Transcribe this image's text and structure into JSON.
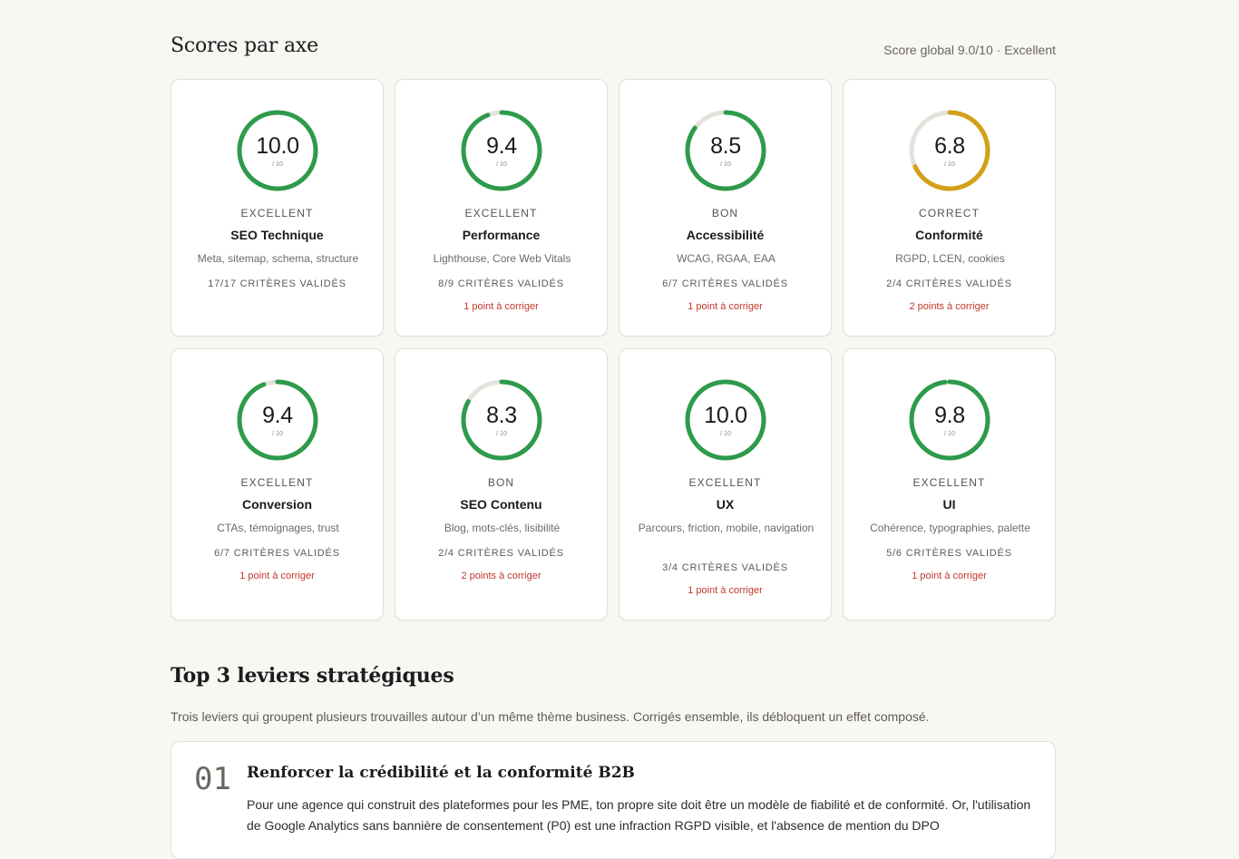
{
  "scores": {
    "title": "Scores par axe",
    "global": "Score global 9.0/10 · Excellent"
  },
  "colors": {
    "green": "#2e9a4b",
    "amber": "#d4a017",
    "track": "#e5e2dc",
    "fix": "#c0392b"
  },
  "cards": [
    {
      "score": "10.0",
      "score_value": 10.0,
      "max": "/ 10",
      "grade": "EXCELLENT",
      "name": "SEO Technique",
      "desc": "Meta, sitemap, schema, structure",
      "criteria": "17/17 CRITÈRES VALIDÉS",
      "fix": "",
      "color": "#2e9a4b"
    },
    {
      "score": "9.4",
      "score_value": 9.4,
      "max": "/ 10",
      "grade": "EXCELLENT",
      "name": "Performance",
      "desc": "Lighthouse, Core Web Vitals",
      "criteria": "8/9 CRITÈRES VALIDÉS",
      "fix": "1 point à corriger",
      "color": "#2e9a4b"
    },
    {
      "score": "8.5",
      "score_value": 8.5,
      "max": "/ 10",
      "grade": "BON",
      "name": "Accessibilité",
      "desc": "WCAG, RGAA, EAA",
      "criteria": "6/7 CRITÈRES VALIDÉS",
      "fix": "1 point à corriger",
      "color": "#2e9a4b"
    },
    {
      "score": "6.8",
      "score_value": 6.8,
      "max": "/ 10",
      "grade": "CORRECT",
      "name": "Conformité",
      "desc": "RGPD, LCEN, cookies",
      "criteria": "2/4 CRITÈRES VALIDÉS",
      "fix": "2 points à corriger",
      "color": "#d4a017"
    },
    {
      "score": "9.4",
      "score_value": 9.4,
      "max": "/ 10",
      "grade": "EXCELLENT",
      "name": "Conversion",
      "desc": "CTAs, témoignages, trust",
      "criteria": "6/7 CRITÈRES VALIDÉS",
      "fix": "1 point à corriger",
      "color": "#2e9a4b"
    },
    {
      "score": "8.3",
      "score_value": 8.3,
      "max": "/ 10",
      "grade": "BON",
      "name": "SEO Contenu",
      "desc": "Blog, mots-clés, lisibilité",
      "criteria": "2/4 CRITÈRES VALIDÉS",
      "fix": "2 points à corriger",
      "color": "#2e9a4b"
    },
    {
      "score": "10.0",
      "score_value": 10.0,
      "max": "/ 10",
      "grade": "EXCELLENT",
      "name": "UX",
      "desc": "Parcours, friction, mobile, navigation",
      "criteria": "3/4 CRITÈRES VALIDÉS",
      "fix": "1 point à corriger",
      "color": "#2e9a4b"
    },
    {
      "score": "9.8",
      "score_value": 9.8,
      "max": "/ 10",
      "grade": "EXCELLENT",
      "name": "UI",
      "desc": "Cohérence, typographies, palette",
      "criteria": "5/6 CRITÈRES VALIDÉS",
      "fix": "1 point à corriger",
      "color": "#2e9a4b"
    }
  ],
  "levers": {
    "title": "Top 3 leviers stratégiques",
    "subtitle": "Trois leviers qui groupent plusieurs trouvailles autour d’un même thème business. Corrigés ensemble, ils débloquent un effet composé.",
    "items": [
      {
        "num": "01",
        "title": "Renforcer la crédibilité et la conformité B2B",
        "body": "Pour une agence qui construit des plateformes pour les PME, ton propre site doit être un modèle de fiabilité et de conformité. Or, l'utilisation de Google Analytics sans bannière de consentement (P0) est une infraction RGPD visible, et l'absence de mention du DPO"
      }
    ]
  }
}
